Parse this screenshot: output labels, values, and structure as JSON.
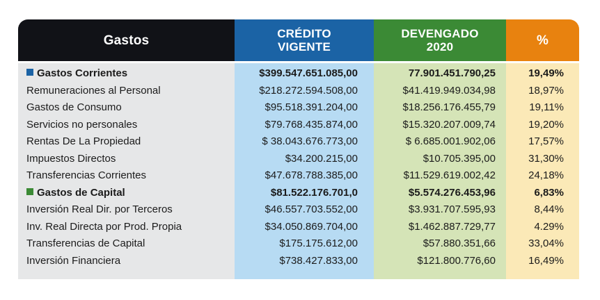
{
  "header": {
    "gastos": "Gastos",
    "credito": "CRÉDITO\nVIGENTE",
    "devengado": "DEVENGADO\n2020",
    "pct": "%"
  },
  "colors": {
    "header_gastos": "#111217",
    "header_credito": "#1b63a5",
    "header_devengado": "#3b8a35",
    "header_pct": "#e8820f",
    "corrientes_marker": "#1b63a5",
    "capital_marker": "#3b8a35"
  },
  "rows": [
    {
      "name": "Gastos Corrientes",
      "credito": "$399.547.651.085,00",
      "devengado": "77.901.451.790,25",
      "pct": "19,49%"
    },
    {
      "name": "Remuneraciones al Personal",
      "credito": "$218.272.594.508,00",
      "devengado": "$41.419.949.034,98",
      "pct": "18,97%"
    },
    {
      "name": "Gastos de Consumo",
      "credito": "$95.518.391.204,00",
      "devengado": "$18.256.176.455,79",
      "pct": "19,11%"
    },
    {
      "name": "Servicios no personales",
      "credito": "$79.768.435.874,00",
      "devengado": "$15.320.207.009,74",
      "pct": "19,20%"
    },
    {
      "name": "Rentas De La Propiedad",
      "credito": "$ 38.043.676.773,00",
      "devengado": "$ 6.685.001.902,06",
      "pct": "17,57%"
    },
    {
      "name": "Impuestos Directos",
      "credito": "$34.200.215,00",
      "devengado": "$10.705.395,00",
      "pct": "31,30%"
    },
    {
      "name": "Transferencias Corrientes",
      "credito": "$47.678.788.385,00",
      "devengado": "$11.529.619.002,42",
      "pct": "24,18%"
    },
    {
      "name": "Gastos de Capital",
      "credito": "$81.522.176.701,0",
      "devengado": "$5.574.276.453,96",
      "pct": "6,83%"
    },
    {
      "name": "Inversión Real Dir. por Terceros",
      "credito": "$46.557.703.552,00",
      "devengado": "$3.931.707.595,93",
      "pct": "8,44%"
    },
    {
      "name": "Inv. Real Directa por Prod. Propia",
      "credito": "$34.050.869.704,00",
      "devengado": "$1.462.887.729,77",
      "pct": "4.29%"
    },
    {
      "name": "Transferencias de Capital",
      "credito": "$175.175.612,00",
      "devengado": "$57.880.351,66",
      "pct": "33,04%"
    },
    {
      "name": "Inversión Financiera",
      "credito": "$738.427.833,00",
      "devengado": "$121.800.776,60",
      "pct": "16,49%"
    }
  ]
}
